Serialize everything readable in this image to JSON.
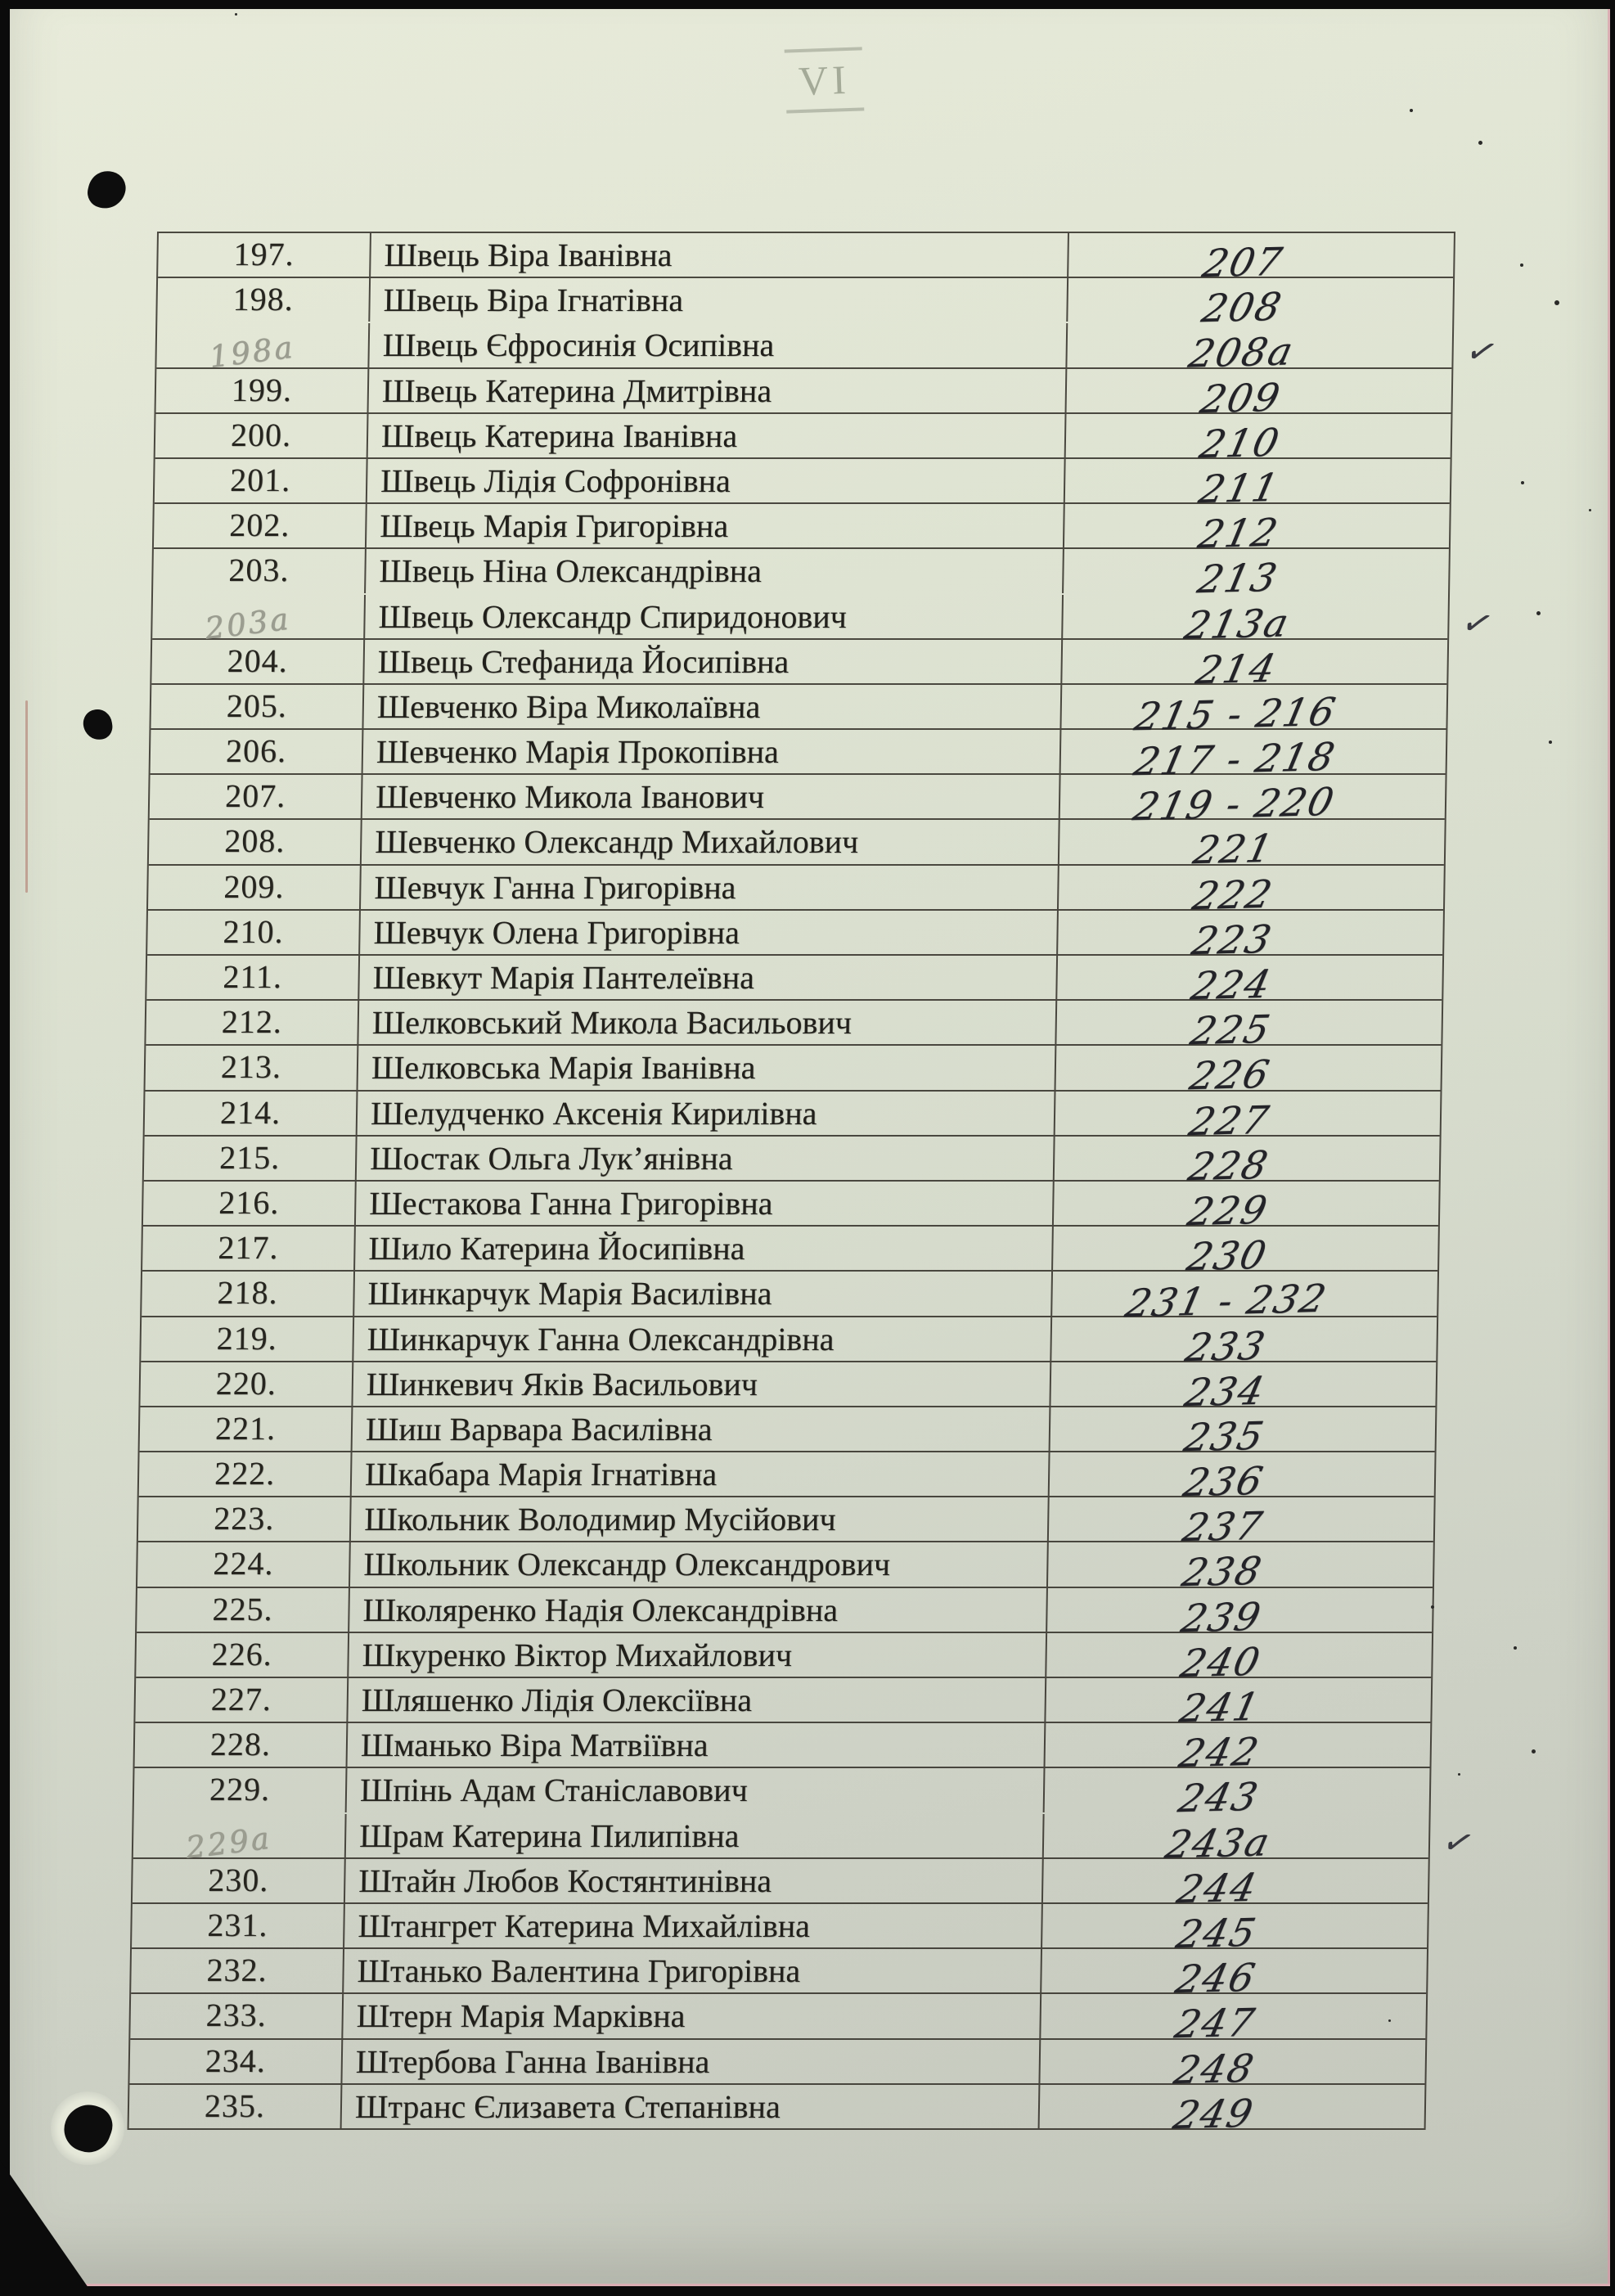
{
  "page_label": "VI",
  "marks": {
    "check_glyph": "✓"
  },
  "colors": {
    "paper_top": "#e8ebda",
    "paper_bottom": "#c2c5ba",
    "table_line": "#302d26",
    "ink": "#232328",
    "pencil": "#9b9d90",
    "scan_edge": "#0b0b0b",
    "scan_edge_tint": "#d17d96"
  },
  "table": {
    "rows": [
      {
        "num": "197.",
        "name": "Швець Віра Іванівна",
        "hw": "207",
        "pencil": false,
        "merge_above": false,
        "check": false
      },
      {
        "num": "198.",
        "name": "Швець Віра Ігнатівна",
        "hw": "208",
        "pencil": false,
        "merge_above": false,
        "check": false
      },
      {
        "num": "198а",
        "name": "Швець Єфросинія Осипівна",
        "hw": "208а",
        "pencil": true,
        "merge_above": true,
        "check": true
      },
      {
        "num": "199.",
        "name": "Швець Катерина Дмитрівна",
        "hw": "209",
        "pencil": false,
        "merge_above": false,
        "check": false
      },
      {
        "num": "200.",
        "name": "Швець Катерина Іванівна",
        "hw": "210",
        "pencil": false,
        "merge_above": false,
        "check": false
      },
      {
        "num": "201.",
        "name": "Швець Лідія Софронівна",
        "hw": "211",
        "pencil": false,
        "merge_above": false,
        "check": false
      },
      {
        "num": "202.",
        "name": "Швець Марія Григорівна",
        "hw": "212",
        "pencil": false,
        "merge_above": false,
        "check": false
      },
      {
        "num": "203.",
        "name": "Швець Ніна Олександрівна",
        "hw": "213",
        "pencil": false,
        "merge_above": false,
        "check": false
      },
      {
        "num": "203а",
        "name": "Швець Олександр Спиридонович",
        "hw": "213а",
        "pencil": true,
        "merge_above": true,
        "check": true
      },
      {
        "num": "204.",
        "name": "Швець Стефанида Йосипівна",
        "hw": "214",
        "pencil": false,
        "merge_above": false,
        "check": false
      },
      {
        "num": "205.",
        "name": "Шевченко Віра Миколаївна",
        "hw": "215 - 216",
        "pencil": false,
        "merge_above": false,
        "check": false
      },
      {
        "num": "206.",
        "name": "Шевченко Марія Прокопівна",
        "hw": "217 - 218",
        "pencil": false,
        "merge_above": false,
        "check": false
      },
      {
        "num": "207.",
        "name": "Шевченко Микола Іванович",
        "hw": "219 - 220",
        "pencil": false,
        "merge_above": false,
        "check": false
      },
      {
        "num": "208.",
        "name": "Шевченко Олександр Михайлович",
        "hw": "221",
        "pencil": false,
        "merge_above": false,
        "check": false
      },
      {
        "num": "209.",
        "name": "Шевчук Ганна Григорівна",
        "hw": "222",
        "pencil": false,
        "merge_above": false,
        "check": false
      },
      {
        "num": "210.",
        "name": "Шевчук Олена Григорівна",
        "hw": "223",
        "pencil": false,
        "merge_above": false,
        "check": false
      },
      {
        "num": "211.",
        "name": "Шевкут Марія Пантелеївна",
        "hw": "224",
        "pencil": false,
        "merge_above": false,
        "check": false
      },
      {
        "num": "212.",
        "name": "Шелковський Микола Васильович",
        "hw": "225",
        "pencil": false,
        "merge_above": false,
        "check": false
      },
      {
        "num": "213.",
        "name": "Шелковська Марія Іванівна",
        "hw": "226",
        "pencil": false,
        "merge_above": false,
        "check": false
      },
      {
        "num": "214.",
        "name": "Шелудченко Аксенія Кирилівна",
        "hw": "227",
        "pencil": false,
        "merge_above": false,
        "check": false
      },
      {
        "num": "215.",
        "name": "Шостак Ольга Лук’янівна",
        "hw": "228",
        "pencil": false,
        "merge_above": false,
        "check": false
      },
      {
        "num": "216.",
        "name": "Шестакова Ганна Григорівна",
        "hw": "229",
        "pencil": false,
        "merge_above": false,
        "check": false
      },
      {
        "num": "217.",
        "name": "Шило Катерина Йосипівна",
        "hw": "230",
        "pencil": false,
        "merge_above": false,
        "check": false
      },
      {
        "num": "218.",
        "name": "Шинкарчук Марія Василівна",
        "hw": "231 - 232",
        "pencil": false,
        "merge_above": false,
        "check": false
      },
      {
        "num": "219.",
        "name": "Шинкарчук Ганна Олександрівна",
        "hw": "233",
        "pencil": false,
        "merge_above": false,
        "check": false
      },
      {
        "num": "220.",
        "name": "Шинкевич Яків Васильович",
        "hw": "234",
        "pencil": false,
        "merge_above": false,
        "check": false
      },
      {
        "num": "221.",
        "name": "Шиш Варвара Василівна",
        "hw": "235",
        "pencil": false,
        "merge_above": false,
        "check": false
      },
      {
        "num": "222.",
        "name": "Шкабара Марія Ігнатівна",
        "hw": "236",
        "pencil": false,
        "merge_above": false,
        "check": false
      },
      {
        "num": "223.",
        "name": "Школьник Володимир Мусійович",
        "hw": "237",
        "pencil": false,
        "merge_above": false,
        "check": false
      },
      {
        "num": "224.",
        "name": "Школьник Олександр Олександрович",
        "hw": "238",
        "pencil": false,
        "merge_above": false,
        "check": false
      },
      {
        "num": "225.",
        "name": "Школяренко Надія Олександрівна",
        "hw": "239",
        "pencil": false,
        "merge_above": false,
        "check": false
      },
      {
        "num": "226.",
        "name": "Шкуренко Віктор Михайлович",
        "hw": "240",
        "pencil": false,
        "merge_above": false,
        "check": false
      },
      {
        "num": "227.",
        "name": "Шляшенко Лідія Олексіївна",
        "hw": "241",
        "pencil": false,
        "merge_above": false,
        "check": false
      },
      {
        "num": "228.",
        "name": "Шманько Віра Матвіївна",
        "hw": "242",
        "pencil": false,
        "merge_above": false,
        "check": false
      },
      {
        "num": "229.",
        "name": "Шпінь Адам Станіславович",
        "hw": "243",
        "pencil": false,
        "merge_above": false,
        "check": false
      },
      {
        "num": "229а",
        "name": "Шрам Катерина Пилипівна",
        "hw": "243а",
        "pencil": true,
        "merge_above": true,
        "check": true
      },
      {
        "num": "230.",
        "name": "Штайн Любов Костянтинівна",
        "hw": "244",
        "pencil": false,
        "merge_above": false,
        "check": false
      },
      {
        "num": "231.",
        "name": "Штангрет Катерина Михайлівна",
        "hw": "245",
        "pencil": false,
        "merge_above": false,
        "check": false
      },
      {
        "num": "232.",
        "name": "Штанько Валентина Григорівна",
        "hw": "246",
        "pencil": false,
        "merge_above": false,
        "check": false
      },
      {
        "num": "233.",
        "name": "Штерн Марія Марківна",
        "hw": "247",
        "pencil": false,
        "merge_above": false,
        "check": false
      },
      {
        "num": "234.",
        "name": "Штербова Ганна Іванівна",
        "hw": "248",
        "pencil": false,
        "merge_above": false,
        "check": false
      },
      {
        "num": "235.",
        "name": "Штранс Єлизавета Степанівна",
        "hw": "249",
        "pencil": false,
        "merge_above": false,
        "check": false
      }
    ]
  }
}
